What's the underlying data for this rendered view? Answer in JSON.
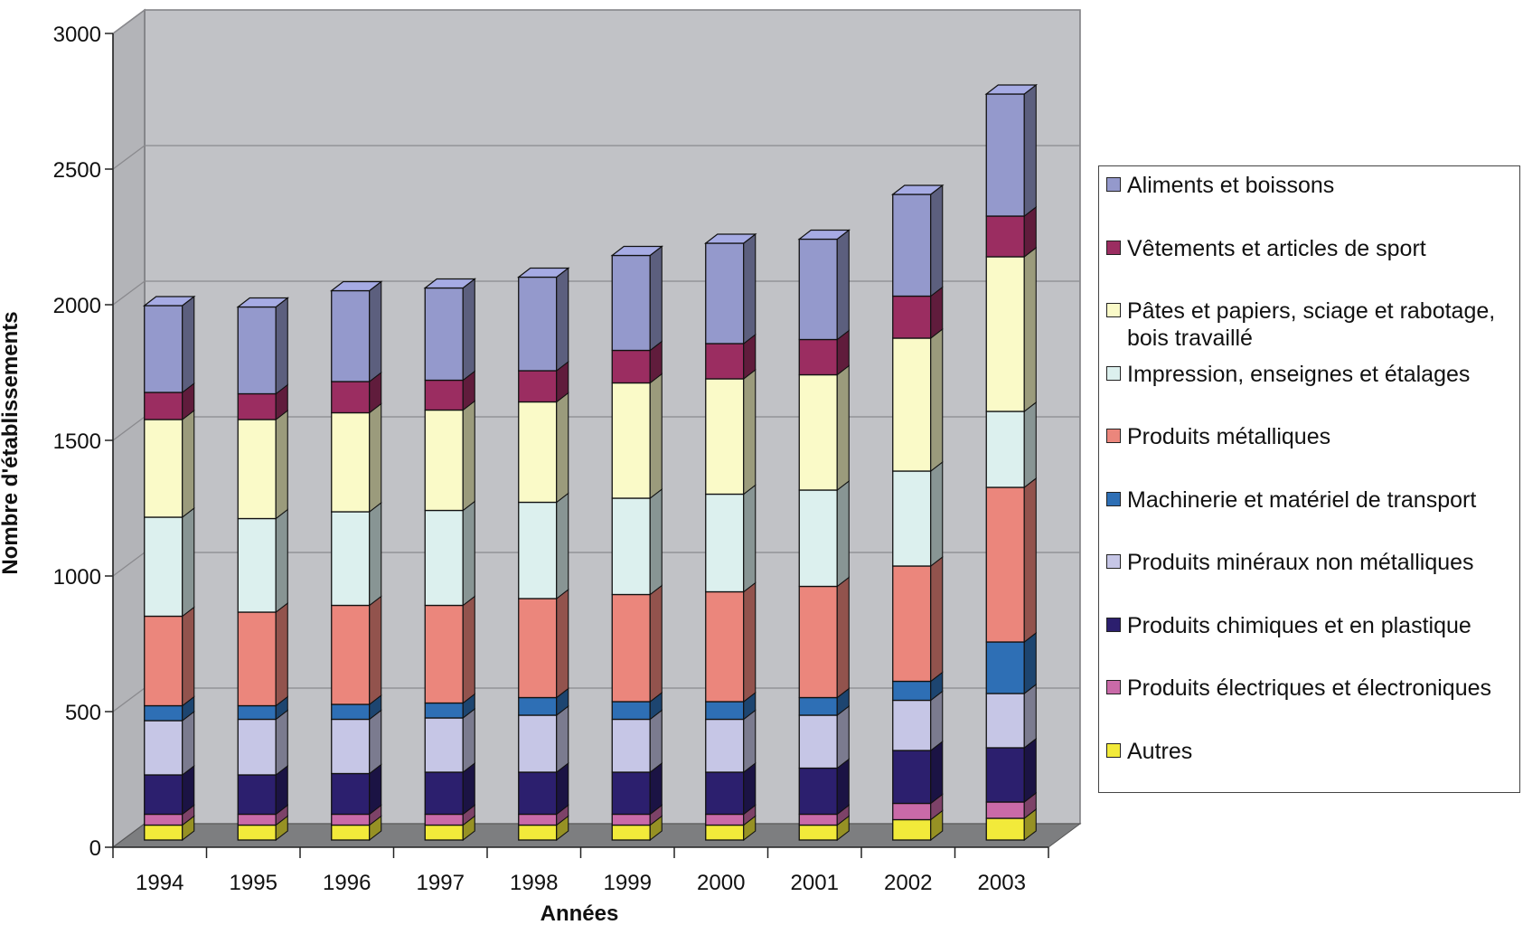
{
  "chart_data": {
    "type": "bar",
    "stacked": true,
    "three_d": true,
    "categories": [
      "1994",
      "1995",
      "1996",
      "1997",
      "1998",
      "1999",
      "2000",
      "2001",
      "2002",
      "2003"
    ],
    "xlabel": "Années",
    "ylabel": "Nombre d'établissements",
    "ylim": [
      0,
      3000
    ],
    "yticks": [
      "0",
      "500",
      "1000",
      "1500",
      "2000",
      "2500",
      "3000"
    ],
    "grid": true,
    "legend_position": "right",
    "series": [
      {
        "name": "Autres",
        "color": "#f2ea3a",
        "values": [
          55,
          55,
          55,
          55,
          55,
          55,
          55,
          55,
          75,
          80
        ]
      },
      {
        "name": "Produits électriques et électroniques",
        "color": "#c96aa8",
        "values": [
          40,
          40,
          40,
          40,
          40,
          40,
          40,
          40,
          60,
          60
        ]
      },
      {
        "name": "Produits chimiques et en plastique",
        "color": "#2c1f6e",
        "values": [
          145,
          145,
          150,
          155,
          155,
          155,
          155,
          170,
          195,
          200
        ]
      },
      {
        "name": "Produits minéraux non métalliques",
        "color": "#c6c6e6",
        "values": [
          200,
          205,
          200,
          200,
          210,
          195,
          195,
          195,
          185,
          200
        ]
      },
      {
        "name": "Machinerie et matériel de transport",
        "color": "#2e6fb5",
        "values": [
          55,
          50,
          55,
          55,
          65,
          65,
          65,
          65,
          70,
          190
        ]
      },
      {
        "name": "Produits métalliques",
        "color": "#eb867c",
        "values": [
          330,
          345,
          365,
          360,
          365,
          395,
          405,
          410,
          425,
          570
        ]
      },
      {
        "name": "Impression, enseignes et étalages",
        "color": "#dcf0ee",
        "values": [
          365,
          345,
          345,
          350,
          355,
          355,
          360,
          355,
          350,
          280
        ]
      },
      {
        "name": "Pâtes et papiers, sciage et rabotage, bois travaillé",
        "color": "#fafac8",
        "values": [
          360,
          365,
          365,
          370,
          370,
          425,
          425,
          425,
          490,
          570
        ]
      },
      {
        "name": "Vêtements et articles de sport",
        "color": "#9b2d61",
        "values": [
          100,
          95,
          115,
          110,
          115,
          120,
          130,
          130,
          155,
          150
        ]
      },
      {
        "name": "Aliments et boissons",
        "color": "#9499cc",
        "values": [
          320,
          320,
          335,
          340,
          345,
          350,
          370,
          370,
          375,
          450
        ]
      }
    ]
  }
}
